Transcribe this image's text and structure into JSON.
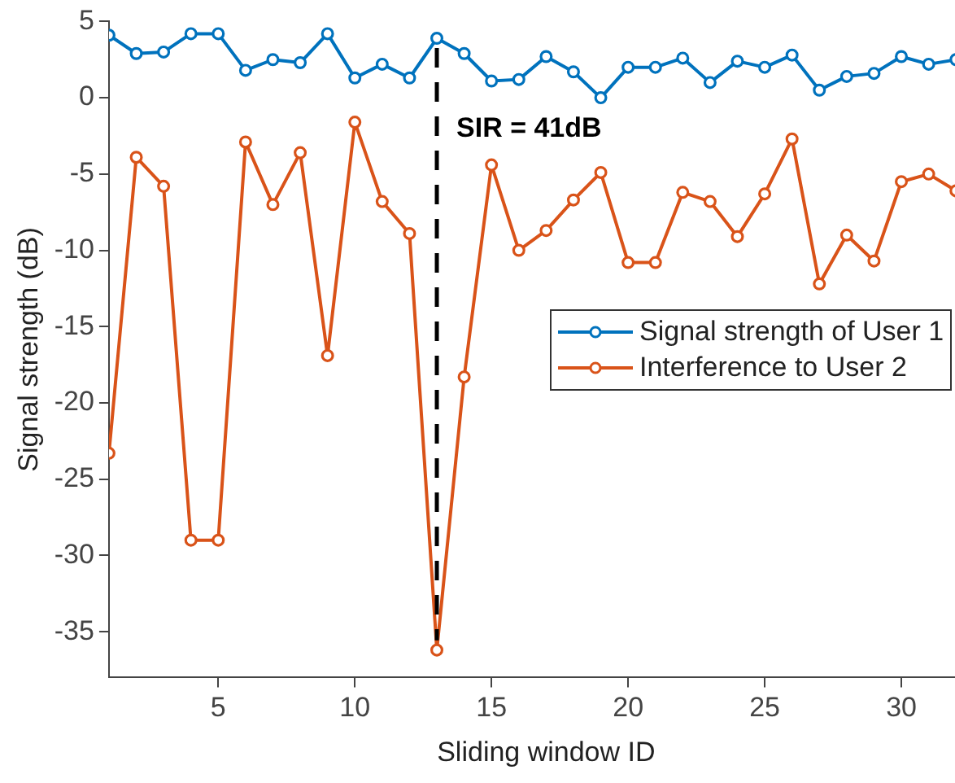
{
  "chart_data": {
    "type": "line",
    "xlabel": "Sliding window ID",
    "ylabel": "Signal strength (dB)",
    "x": [
      1,
      2,
      3,
      4,
      5,
      6,
      7,
      8,
      9,
      10,
      11,
      12,
      13,
      14,
      15,
      16,
      17,
      18,
      19,
      20,
      21,
      22,
      23,
      24,
      25,
      26,
      27,
      28,
      29,
      30,
      31,
      32,
      33
    ],
    "series": [
      {
        "name": "Signal strength of User 1",
        "color": "#0072bd",
        "values": [
          4.1,
          2.9,
          3.0,
          4.2,
          4.2,
          1.8,
          2.5,
          2.3,
          4.2,
          1.3,
          2.2,
          1.3,
          3.9,
          2.9,
          1.1,
          1.2,
          2.7,
          1.7,
          0.0,
          2.0,
          2.0,
          2.6,
          1.0,
          2.4,
          2.0,
          2.8,
          0.5,
          1.4,
          1.6,
          2.7,
          2.2,
          2.5,
          2.3
        ]
      },
      {
        "name": "Interference to User 2",
        "color": "#d95319",
        "values": [
          -23.3,
          -3.9,
          -5.8,
          -29.0,
          -29.0,
          -2.9,
          -7.0,
          -3.6,
          -16.9,
          -1.6,
          -6.8,
          -8.9,
          -36.2,
          -18.3,
          -4.4,
          -10.0,
          -8.7,
          -6.7,
          -4.9,
          -10.8,
          -10.8,
          -6.2,
          -6.8,
          -9.1,
          -6.3,
          -2.7,
          -12.2,
          -9.0,
          -10.7,
          -5.5,
          -5.0,
          -6.1,
          -9.7
        ]
      }
    ],
    "xlim": [
      1,
      33
    ],
    "xticks": [
      5,
      10,
      15,
      20,
      25,
      30
    ],
    "ylim": [
      -38,
      5
    ],
    "yticks": [
      -35,
      -30,
      -25,
      -20,
      -15,
      -10,
      -5,
      0,
      5
    ],
    "ref_lines": [
      {
        "axis": "x",
        "value": 13,
        "color": "#000000",
        "line_style": "dashed"
      }
    ],
    "annotations": [
      "SIR = 41dB"
    ],
    "grid": false,
    "legend": "right",
    "marker": "circle",
    "line_style": "solid"
  }
}
